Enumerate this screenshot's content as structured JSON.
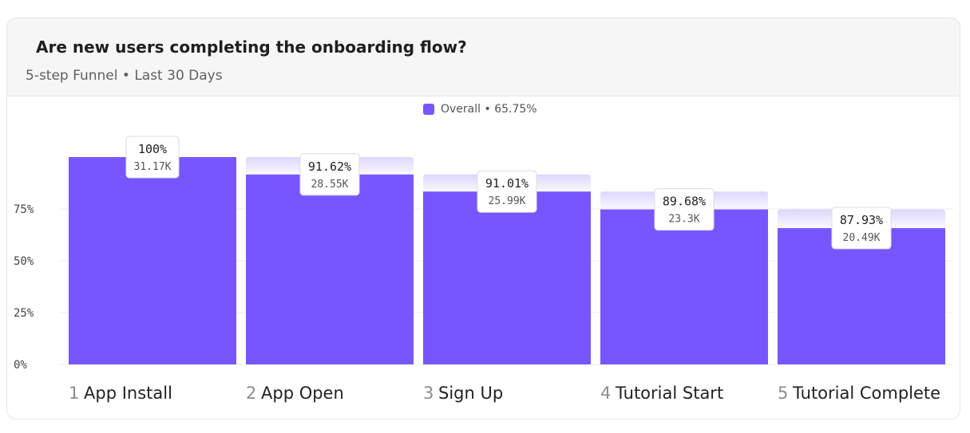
{
  "header": {
    "title": "Are new users completing the onboarding flow?",
    "subtitle": "5-step Funnel • Last 30 Days"
  },
  "legend": {
    "label": "Overall • 65.75%",
    "color": "#7856ff"
  },
  "colors": {
    "bar": "#7856ff",
    "ghost_top": "#ddd6ff",
    "ghost_bottom": "#faf8ff",
    "grid": "#ececec"
  },
  "chart_data": {
    "type": "bar",
    "categories": [
      "App Install",
      "App Open",
      "Sign Up",
      "Tutorial Start",
      "Tutorial Complete"
    ],
    "step_numbers": [
      "1",
      "2",
      "3",
      "4",
      "5"
    ],
    "values": [
      100,
      91.62,
      83.38,
      74.78,
      65.75
    ],
    "previous_step_values": [
      100,
      100,
      91.62,
      83.38,
      74.78
    ],
    "conversion_labels": [
      "100%",
      "91.62%",
      "91.01%",
      "89.68%",
      "87.93%"
    ],
    "count_labels": [
      "31.17K",
      "28.55K",
      "25.99K",
      "23.3K",
      "20.49K"
    ],
    "ylim": [
      0,
      100
    ],
    "yticks": [
      0,
      25,
      50,
      75
    ],
    "ytick_labels": [
      "0%",
      "25%",
      "50%",
      "75%"
    ],
    "grid": true
  }
}
